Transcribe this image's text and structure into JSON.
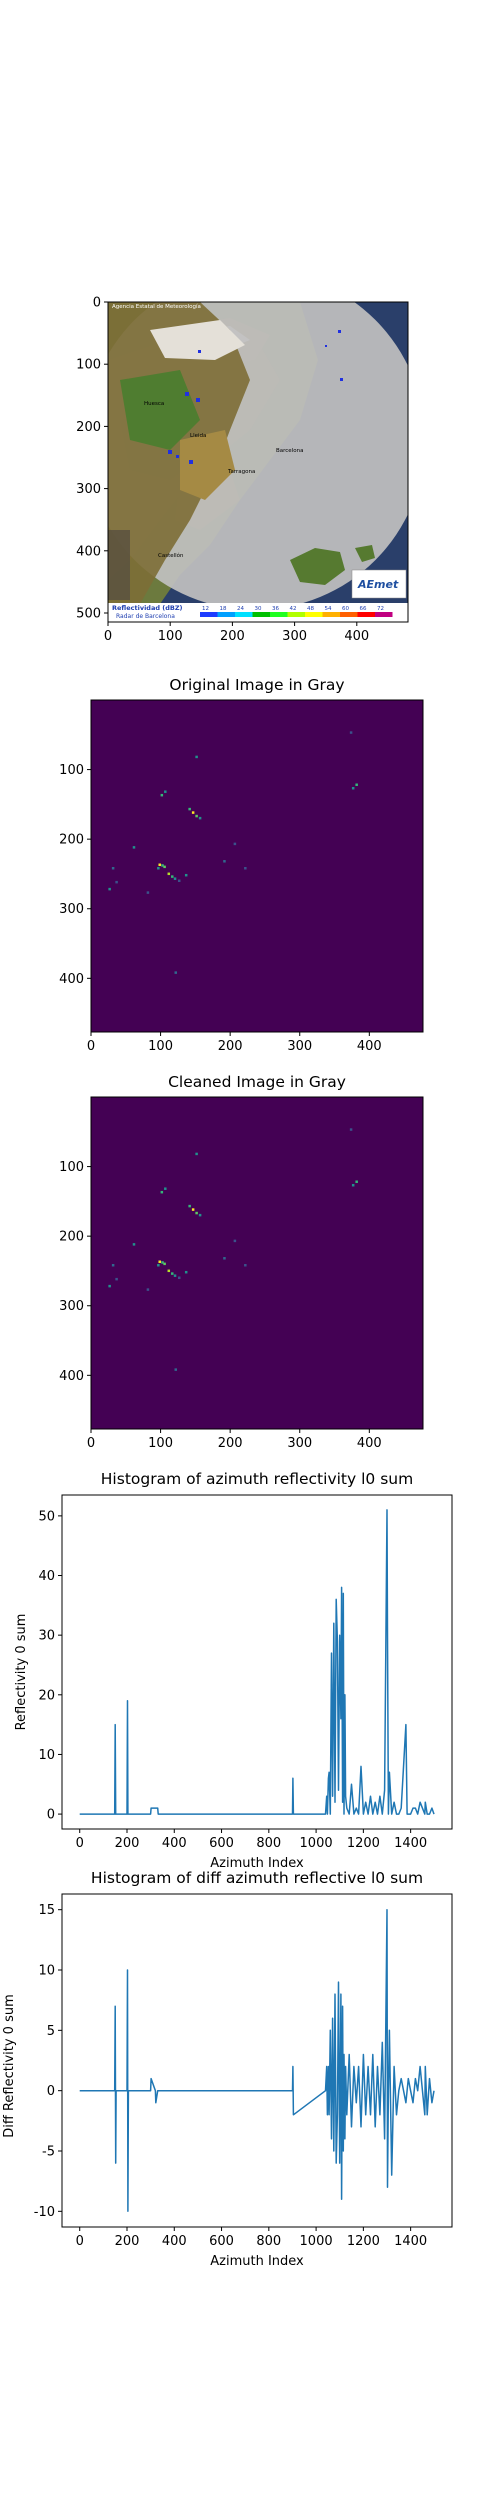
{
  "figure": {
    "panel1": {
      "title": "",
      "xticks": [
        "0",
        "100",
        "200",
        "300",
        "400"
      ],
      "yticks": [
        "0",
        "100",
        "200",
        "300",
        "400",
        "500"
      ],
      "map_text": {
        "credit": "Agencia Estatal de Meteorología",
        "cities": [
          "Huesca",
          "Lleida",
          "Barcelona",
          "Tarragona",
          "Castellón"
        ],
        "legend_title": "Reflectividad (dBZ)",
        "legend_sub": "Radar de Barcelona",
        "legend_values": [
          "12",
          "18",
          "24",
          "30",
          "36",
          "42",
          "48",
          "54",
          "60",
          "66",
          "72"
        ],
        "logo": "AEmet"
      }
    },
    "panel2": {
      "title": "Original Image in Gray",
      "xticks": [
        "0",
        "100",
        "200",
        "300",
        "400"
      ],
      "yticks": [
        "100",
        "200",
        "300",
        "400"
      ]
    },
    "panel3": {
      "title": "Cleaned Image in Gray",
      "xticks": [
        "0",
        "100",
        "200",
        "300",
        "400"
      ],
      "yticks": [
        "100",
        "200",
        "300",
        "400"
      ]
    }
  },
  "colors": {
    "viridis_bg": "#440154",
    "line": "#1f77b4",
    "radar_grey": "#c0c0c0"
  },
  "chart_data": [
    {
      "type": "line",
      "title": "Histogram of azimuth reflectivity l0 sum",
      "xlabel": "Azimuth Index",
      "ylabel": "Reflectivity 0 sum",
      "xlim": [
        -75,
        1575
      ],
      "ylim": [
        -2.5,
        53.5
      ],
      "xticks": [
        0,
        200,
        400,
        600,
        800,
        1000,
        1200,
        1400
      ],
      "yticks": [
        0,
        10,
        20,
        30,
        40,
        50
      ],
      "x": [
        0,
        148,
        150,
        152,
        154,
        200,
        202,
        204,
        206,
        300,
        302,
        320,
        322,
        330,
        332,
        900,
        902,
        904,
        1040,
        1045,
        1048,
        1052,
        1055,
        1060,
        1065,
        1070,
        1075,
        1080,
        1085,
        1090,
        1095,
        1100,
        1105,
        1108,
        1112,
        1115,
        1118,
        1122,
        1125,
        1130,
        1140,
        1150,
        1160,
        1170,
        1180,
        1190,
        1200,
        1210,
        1220,
        1230,
        1240,
        1250,
        1260,
        1270,
        1280,
        1290,
        1300,
        1302,
        1306,
        1310,
        1320,
        1330,
        1340,
        1350,
        1360,
        1380,
        1385,
        1390,
        1400,
        1410,
        1420,
        1430,
        1440,
        1460,
        1462,
        1470,
        1480,
        1490,
        1499
      ],
      "y": [
        0,
        0,
        15,
        0,
        0,
        0,
        19,
        0,
        0,
        0,
        1,
        1,
        1,
        1,
        0,
        0,
        6,
        0,
        0,
        3,
        0,
        6,
        7,
        0,
        27,
        3,
        32,
        2,
        36,
        29,
        4,
        30,
        16,
        38,
        2,
        37,
        0,
        20,
        3,
        1,
        0,
        5,
        0,
        1,
        0,
        8,
        0,
        2,
        0,
        3,
        0,
        2,
        0,
        3,
        0,
        4,
        51,
        30,
        0,
        7,
        0,
        2,
        0,
        0,
        1,
        15,
        0,
        0,
        0,
        1,
        1,
        0,
        2,
        0,
        2,
        0,
        0,
        1,
        0
      ]
    },
    {
      "type": "line",
      "title": "Histogram of diff azimuth reflective l0 sum",
      "xlabel": "Azimuth Index",
      "ylabel": "Diff Reflectivity 0 sum",
      "xlim": [
        -75,
        1575
      ],
      "ylim": [
        -11.3,
        16.3
      ],
      "xticks": [
        0,
        200,
        400,
        600,
        800,
        1000,
        1200,
        1400
      ],
      "yticks": [
        -10,
        -5,
        0,
        5,
        10,
        15
      ],
      "x": [
        0,
        148,
        150,
        152,
        154,
        200,
        202,
        204,
        206,
        300,
        302,
        320,
        322,
        330,
        332,
        900,
        902,
        904,
        1040,
        1045,
        1048,
        1052,
        1055,
        1060,
        1065,
        1070,
        1075,
        1080,
        1085,
        1090,
        1095,
        1100,
        1105,
        1108,
        1112,
        1115,
        1118,
        1122,
        1125,
        1130,
        1140,
        1150,
        1160,
        1170,
        1180,
        1190,
        1200,
        1210,
        1220,
        1230,
        1240,
        1250,
        1260,
        1270,
        1280,
        1290,
        1300,
        1302,
        1306,
        1310,
        1320,
        1330,
        1340,
        1350,
        1360,
        1380,
        1385,
        1390,
        1400,
        1410,
        1420,
        1430,
        1440,
        1460,
        1462,
        1470,
        1480,
        1490,
        1499
      ],
      "y": [
        0,
        0,
        7,
        -6,
        0,
        0,
        10,
        -10,
        0,
        0,
        1,
        0,
        -1,
        0,
        0,
        0,
        2,
        -2,
        0,
        2,
        -2,
        2,
        -2,
        5,
        -4,
        6,
        -5,
        8,
        -6,
        -2,
        9,
        -6,
        8,
        -9,
        7,
        -5,
        3,
        -4,
        2,
        -2,
        3,
        -3,
        2,
        -1,
        2,
        -3,
        3,
        -2,
        2,
        -2,
        3,
        -3,
        2,
        -2,
        4,
        -4,
        15,
        -8,
        0,
        5,
        -7,
        2,
        -2,
        0,
        1,
        -1,
        0,
        1,
        0,
        -1,
        1,
        0,
        2,
        -2,
        2,
        -2,
        1,
        -1,
        0
      ]
    }
  ]
}
